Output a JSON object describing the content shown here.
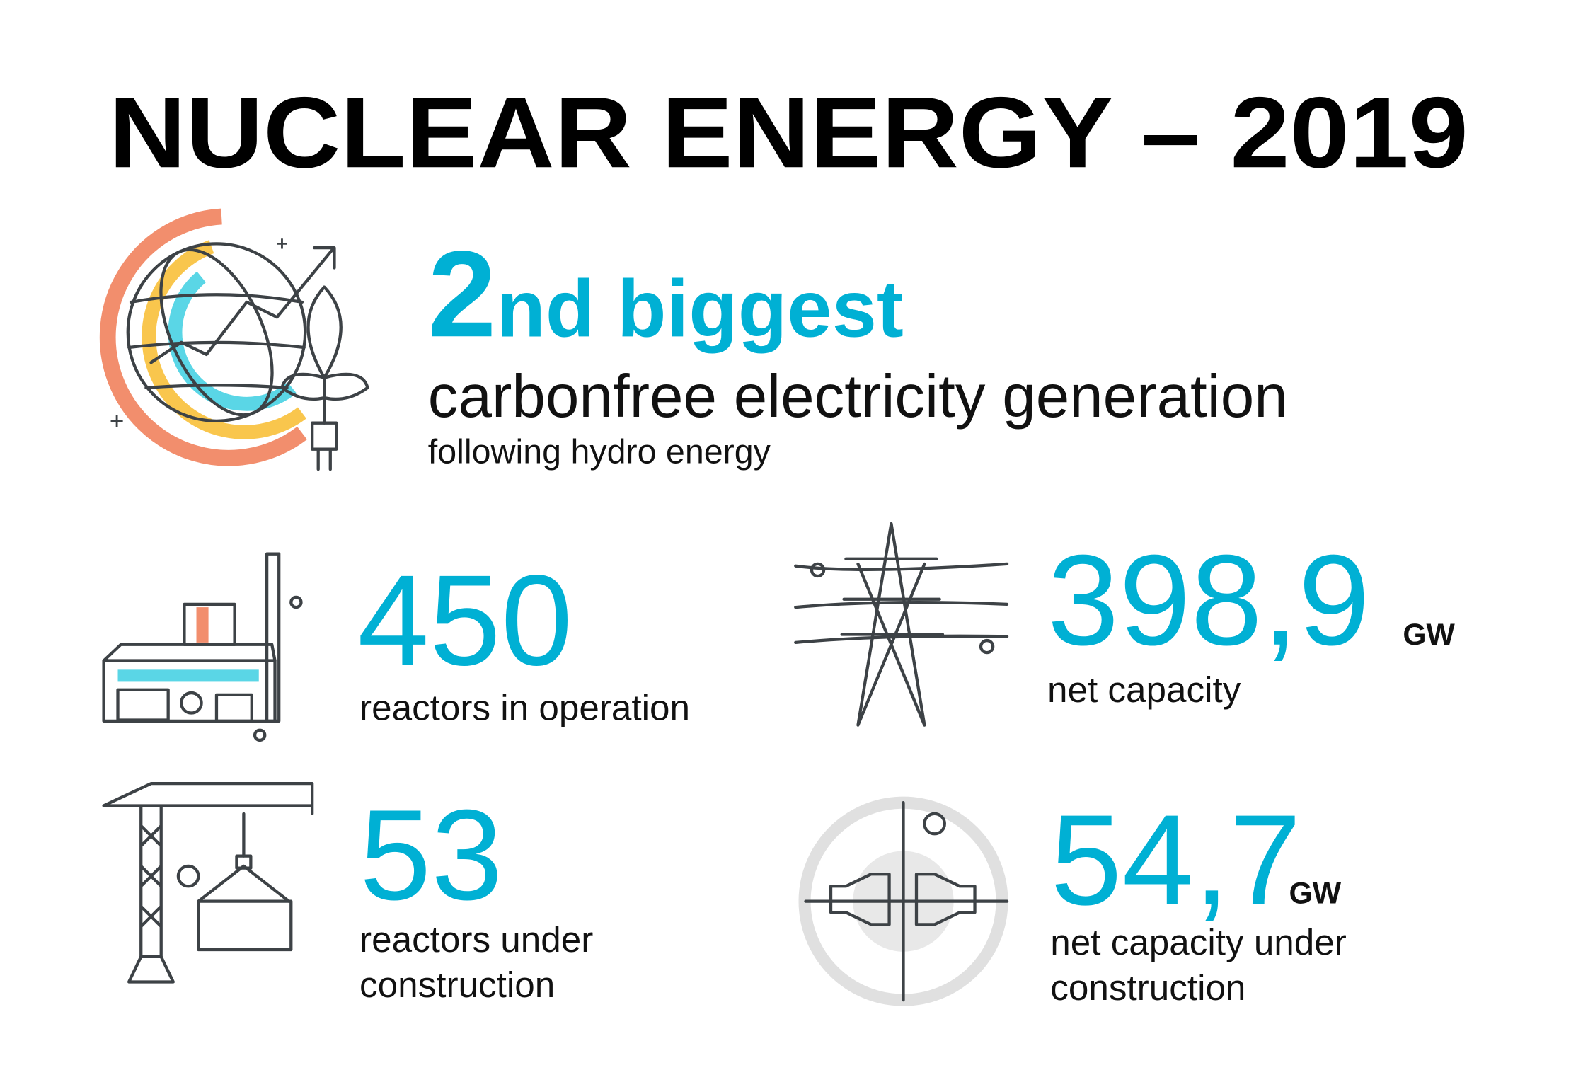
{
  "title": "NUCLEAR ENERGY – 2019",
  "highlight": {
    "rank_number": "2",
    "rank_suffix": "nd biggest",
    "headline": "carbonfree electricity generation",
    "note": "following hydro energy"
  },
  "stats": [
    {
      "value": "450",
      "label_lines": [
        "reactors in operation"
      ]
    },
    {
      "value": "398,9",
      "unit": "GW",
      "label_lines": [
        "net capacity"
      ]
    },
    {
      "value": "53",
      "label_lines": [
        "reactors under",
        "construction"
      ]
    },
    {
      "value": "54,7",
      "unit": "GW",
      "label_lines": [
        "net capacity under",
        "construction"
      ]
    }
  ]
}
